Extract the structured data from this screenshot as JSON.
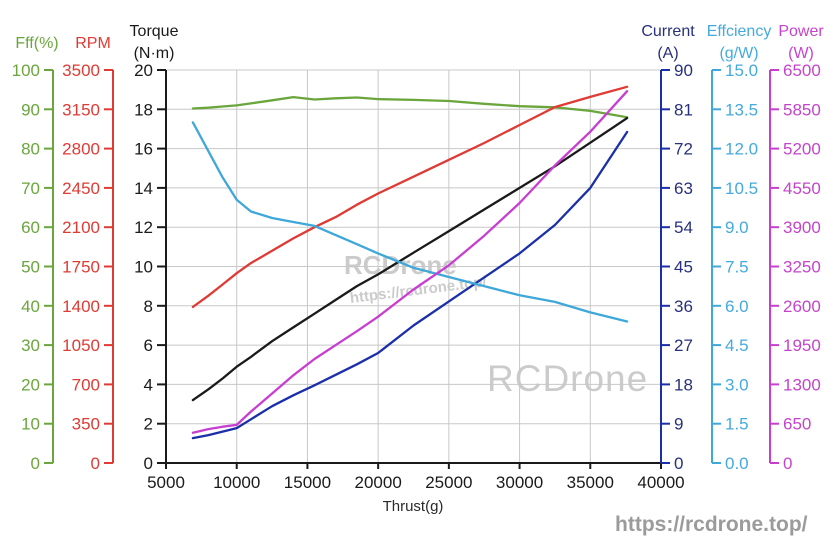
{
  "x_axis": {
    "label": "Thrust(g)",
    "min": 5000,
    "max": 40000,
    "step": 5000,
    "ticks": [
      5000,
      10000,
      15000,
      20000,
      25000,
      30000,
      35000,
      40000
    ]
  },
  "axes": {
    "fff": {
      "title": "Fff(%)",
      "title2": "",
      "color": "#6aa63c",
      "line_color": "#6aa63c",
      "max": 100,
      "ticks": [
        "0",
        "10",
        "20",
        "30",
        "40",
        "50",
        "60",
        "70",
        "80",
        "90",
        "100"
      ]
    },
    "rpm": {
      "title": "RPM",
      "title2": "",
      "color": "#e03a34",
      "line_color": "#e03a34",
      "max": 3500,
      "ticks": [
        "0",
        "350",
        "700",
        "1050",
        "1400",
        "1750",
        "2100",
        "2450",
        "2800",
        "3150",
        "3500"
      ]
    },
    "torque": {
      "title": "Torque",
      "title2": "(N·m)",
      "color": "#1a1a1a",
      "line_color": "#1a1a1a",
      "max": 20,
      "ticks": [
        "0",
        "2",
        "4",
        "6",
        "8",
        "10",
        "12",
        "14",
        "16",
        "18",
        "20"
      ]
    },
    "current": {
      "title": "Current",
      "title2": "(A)",
      "color": "#27307c",
      "line_color": "#1b2fa8",
      "max": 90,
      "ticks": [
        "0",
        "9",
        "18",
        "27",
        "36",
        "45",
        "54",
        "63",
        "72",
        "81",
        "90"
      ]
    },
    "effciency": {
      "title": "Effciency",
      "title2": "(g/W)",
      "color": "#45aadd",
      "line_color": "#3fa8da",
      "max": 15,
      "ticks": [
        "0.0",
        "1.5",
        "3.0",
        "4.5",
        "6.0",
        "7.5",
        "9.0",
        "10.5",
        "12.0",
        "13.5",
        "15.0"
      ]
    },
    "power": {
      "title": "Power",
      "title2": "(W)",
      "color": "#c544cc",
      "line_color": "#c73ed0",
      "max": 6500,
      "ticks": [
        "0",
        "650",
        "1300",
        "1950",
        "2600",
        "3250",
        "3900",
        "4550",
        "5200",
        "5850",
        "6500"
      ]
    }
  },
  "chart_data": {
    "type": "line",
    "xlabel": "Thrust(g)",
    "x_range": [
      5000,
      40000
    ],
    "grid": true,
    "x": [
      6900,
      8000,
      9000,
      10000,
      11000,
      12500,
      14000,
      15500,
      17000,
      18500,
      20000,
      22500,
      25000,
      27500,
      30000,
      32500,
      35000,
      37600
    ],
    "series": [
      {
        "name": "Fff(%)",
        "axis": "fff",
        "color": "#6aa63c",
        "values": [
          90.2,
          90.4,
          90.7,
          91.0,
          91.5,
          92.3,
          93.1,
          92.5,
          92.8,
          93.0,
          92.6,
          92.4,
          92.1,
          91.4,
          90.8,
          90.5,
          89.6,
          88.0
        ]
      },
      {
        "name": "RPM",
        "axis": "rpm",
        "color": "#e03a34",
        "values": [
          1390,
          1490,
          1590,
          1690,
          1780,
          1890,
          2000,
          2100,
          2190,
          2300,
          2400,
          2550,
          2700,
          2850,
          3010,
          3170,
          3260,
          3350
        ]
      },
      {
        "name": "Torque(N·m)",
        "axis": "torque",
        "color": "#1a1a1a",
        "values": [
          3.2,
          3.75,
          4.3,
          4.9,
          5.4,
          6.2,
          6.9,
          7.6,
          8.3,
          9.0,
          9.6,
          10.7,
          11.8,
          12.9,
          14.0,
          15.1,
          16.3,
          17.55
        ]
      },
      {
        "name": "Current(A)",
        "axis": "current",
        "color": "#1b2fa8",
        "values": [
          5.7,
          6.4,
          7.2,
          8.0,
          10.0,
          13.0,
          15.5,
          17.8,
          20.2,
          22.6,
          25.2,
          31.5,
          37.0,
          42.5,
          48.0,
          54.5,
          63.0,
          75.8
        ]
      },
      {
        "name": "Effciency(g/W)",
        "axis": "effciency",
        "color": "#3fa8da",
        "values": [
          13.0,
          11.9,
          10.9,
          10.05,
          9.6,
          9.35,
          9.2,
          9.05,
          8.7,
          8.35,
          8.0,
          7.45,
          7.1,
          6.75,
          6.4,
          6.15,
          5.75,
          5.4
        ]
      },
      {
        "name": "Power(W)",
        "axis": "power",
        "color": "#c73ed0",
        "values": [
          500,
          560,
          600,
          630,
          850,
          1150,
          1450,
          1720,
          1950,
          2180,
          2420,
          2870,
          3270,
          3760,
          4300,
          4920,
          5480,
          6150
        ]
      }
    ]
  },
  "watermarks": {
    "center_name": "RCDrone",
    "center_url": "https://rcdrone.top/",
    "big_name": "RCDrone",
    "corner_url": "https://rcdrone.top/"
  }
}
